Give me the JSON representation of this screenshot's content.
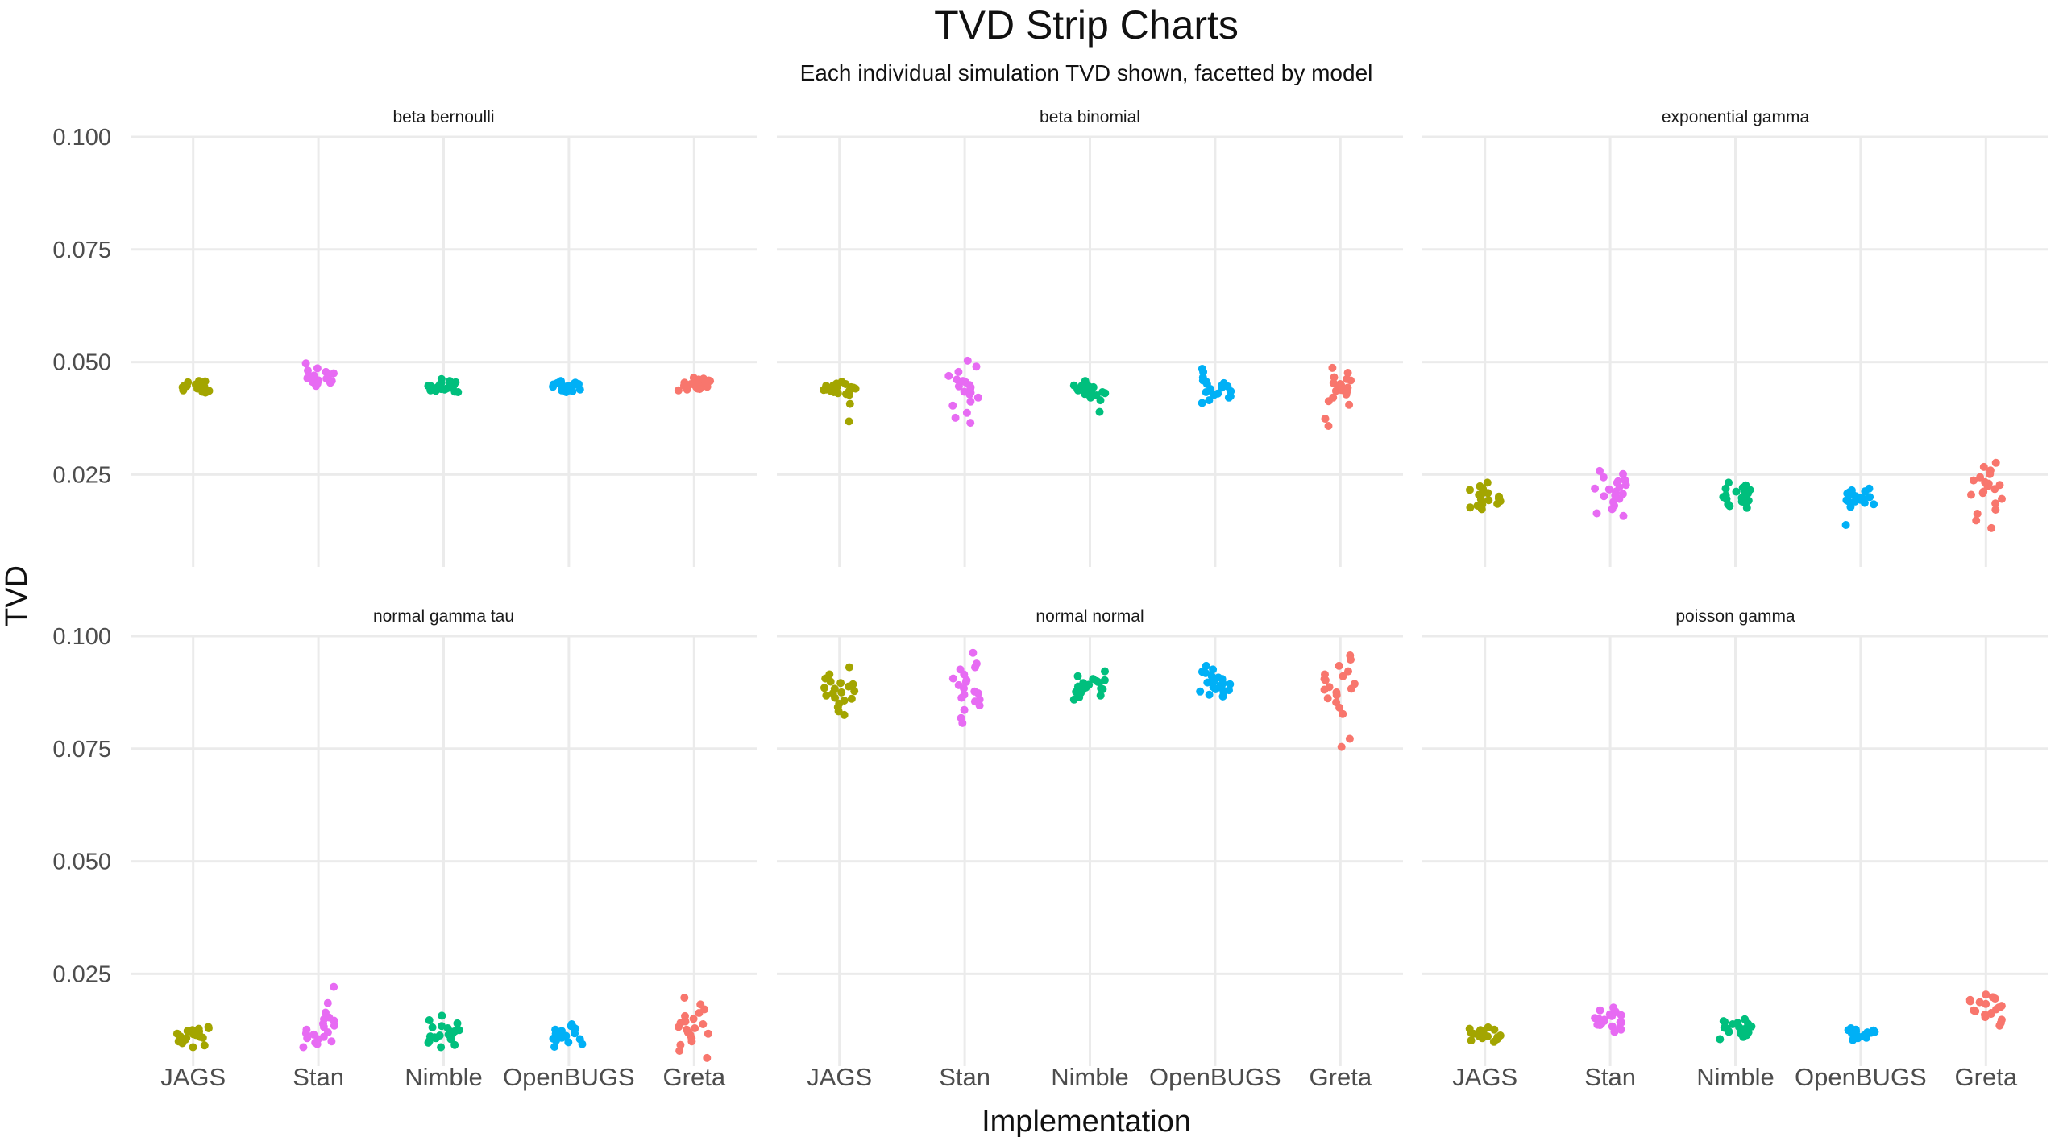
{
  "chart_data": {
    "type": "scatter",
    "subtype": "faceted strip chart (jittered)",
    "title": "TVD Strip Charts",
    "subtitle": "Each individual simulation TVD shown, facetted by model",
    "xlabel": "Implementation",
    "ylabel": "TVD",
    "categories": [
      "JAGS",
      "Stan",
      "Nimble",
      "OpenBUGS",
      "Greta"
    ],
    "colors": {
      "JAGS": "#A3A500",
      "Stan": "#E76BF3",
      "Nimble": "#00BF7D",
      "OpenBUGS": "#00B0F6",
      "Greta": "#F8766D"
    },
    "ylim": [
      0.0045,
      0.1
    ],
    "yticks": [
      0.025,
      0.05,
      0.075,
      0.1
    ],
    "ytick_labels": [
      "0.025",
      "0.050",
      "0.075",
      "0.100"
    ],
    "grid": true,
    "legend": "none",
    "panels": [
      {
        "name": "beta bernoulli",
        "series": [
          {
            "name": "JAGS",
            "values": [
              0.0453,
              0.0447,
              0.0441,
              0.0436,
              0.0458,
              0.0449,
              0.0444,
              0.0432,
              0.0451,
              0.0439,
              0.0446,
              0.0455,
              0.0442,
              0.0437,
              0.045,
              0.0448,
              0.0443,
              0.0434,
              0.0457,
              0.0445
            ]
          },
          {
            "name": "Stan",
            "values": [
              0.0497,
              0.0486,
              0.0478,
              0.047,
              0.0466,
              0.0462,
              0.0458,
              0.0454,
              0.045,
              0.0447,
              0.0472,
              0.0481,
              0.0464,
              0.0456,
              0.0468,
              0.0459,
              0.0475,
              0.0452,
              0.0463,
              0.0469
            ]
          },
          {
            "name": "Nimble",
            "values": [
              0.0462,
              0.0455,
              0.0449,
              0.0444,
              0.0439,
              0.0434,
              0.0452,
              0.0446,
              0.0441,
              0.0437,
              0.0458,
              0.0448,
              0.0443,
              0.0436,
              0.045,
              0.0445,
              0.044,
              0.0433,
              0.0454,
              0.0447
            ]
          },
          {
            "name": "OpenBUGS",
            "values": [
              0.0458,
              0.0453,
              0.0449,
              0.0445,
              0.0441,
              0.0437,
              0.0433,
              0.0456,
              0.0451,
              0.0447,
              0.0443,
              0.0439,
              0.0435,
              0.0454,
              0.045,
              0.0446,
              0.0442,
              0.0438,
              0.0452,
              0.0448
            ]
          },
          {
            "name": "Greta",
            "values": [
              0.0465,
              0.0459,
              0.0454,
              0.0449,
              0.0445,
              0.0441,
              0.0437,
              0.0461,
              0.0456,
              0.0451,
              0.0447,
              0.0443,
              0.0439,
              0.0463,
              0.0458,
              0.0452,
              0.0448,
              0.0444,
              0.044,
              0.0455
            ]
          }
        ]
      },
      {
        "name": "beta binomial",
        "series": [
          {
            "name": "JAGS",
            "values": [
              0.0456,
              0.0451,
              0.0447,
              0.0443,
              0.0439,
              0.0435,
              0.0431,
              0.0427,
              0.0448,
              0.0444,
              0.044,
              0.0436,
              0.0452,
              0.0445,
              0.0438,
              0.0433,
              0.0429,
              0.0407,
              0.0368,
              0.0441
            ]
          },
          {
            "name": "Stan",
            "values": [
              0.0503,
              0.049,
              0.0478,
              0.0469,
              0.0461,
              0.0455,
              0.0449,
              0.0444,
              0.0439,
              0.0434,
              0.0428,
              0.0421,
              0.0412,
              0.0403,
              0.0387,
              0.0376,
              0.0365,
              0.0458,
              0.0446,
              0.0432
            ]
          },
          {
            "name": "Nimble",
            "values": [
              0.0458,
              0.0452,
              0.0447,
              0.0443,
              0.0439,
              0.0435,
              0.0431,
              0.0426,
              0.0421,
              0.0415,
              0.0389,
              0.045,
              0.0445,
              0.0441,
              0.0437,
              0.0433,
              0.0429,
              0.0448,
              0.0444,
              0.044
            ]
          },
          {
            "name": "OpenBUGS",
            "values": [
              0.0485,
              0.0478,
              0.0466,
              0.0459,
              0.0453,
              0.0448,
              0.0443,
              0.0438,
              0.0433,
              0.0427,
              0.0421,
              0.0415,
              0.0409,
              0.0446,
              0.044,
              0.0435,
              0.0456,
              0.0451,
              0.043,
              0.0424
            ]
          },
          {
            "name": "Greta",
            "values": [
              0.0487,
              0.0476,
              0.0466,
              0.0459,
              0.0453,
              0.0448,
              0.0443,
              0.0438,
              0.0433,
              0.0428,
              0.0421,
              0.0413,
              0.0405,
              0.0374,
              0.0358,
              0.0451,
              0.0445,
              0.0436,
              0.0462,
              0.0441
            ]
          }
        ]
      },
      {
        "name": "exponential gamma",
        "series": [
          {
            "name": "JAGS",
            "values": [
              0.0232,
              0.0224,
              0.0218,
              0.0213,
              0.0209,
              0.0205,
              0.0201,
              0.0197,
              0.0193,
              0.0189,
              0.0185,
              0.0181,
              0.0177,
              0.0173,
              0.0207,
              0.0199,
              0.0191,
              0.0216,
              0.0183,
              0.0195
            ]
          },
          {
            "name": "Stan",
            "values": [
              0.0258,
              0.0251,
              0.0244,
              0.0238,
              0.0232,
              0.0227,
              0.0222,
              0.0217,
              0.0212,
              0.0207,
              0.0202,
              0.0196,
              0.0189,
              0.0181,
              0.0173,
              0.0164,
              0.0158,
              0.0235,
              0.0219,
              0.0204
            ]
          },
          {
            "name": "Nimble",
            "values": [
              0.0232,
              0.0226,
              0.0221,
              0.0216,
              0.0212,
              0.0208,
              0.0204,
              0.02,
              0.0196,
              0.0192,
              0.0188,
              0.0184,
              0.018,
              0.0176,
              0.0214,
              0.0198,
              0.019,
              0.0219,
              0.0202,
              0.0186
            ]
          },
          {
            "name": "OpenBUGS",
            "values": [
              0.0219,
              0.0215,
              0.0211,
              0.0208,
              0.0205,
              0.0202,
              0.0199,
              0.0196,
              0.0193,
              0.019,
              0.0187,
              0.0184,
              0.0178,
              0.0138,
              0.0206,
              0.02,
              0.0194,
              0.0213,
              0.0197,
              0.0191
            ]
          },
          {
            "name": "Greta",
            "values": [
              0.0276,
              0.0267,
              0.0259,
              0.0251,
              0.0244,
              0.0237,
              0.023,
              0.0224,
              0.0218,
              0.0212,
              0.0205,
              0.0196,
              0.0186,
              0.0172,
              0.0163,
              0.0148,
              0.0131,
              0.0227,
              0.0209,
              0.0233
            ]
          }
        ]
      },
      {
        "name": "normal gamma tau",
        "series": [
          {
            "name": "JAGS",
            "values": [
              0.0132,
              0.0128,
              0.0125,
              0.0122,
              0.0119,
              0.0116,
              0.0113,
              0.011,
              0.0107,
              0.0104,
              0.01,
              0.0096,
              0.0091,
              0.0087,
              0.0123,
              0.0117,
              0.0111,
              0.0129,
              0.0108,
              0.0114
            ]
          },
          {
            "name": "Stan",
            "values": [
              0.0221,
              0.0185,
              0.0164,
              0.0153,
              0.0146,
              0.0139,
              0.0132,
              0.0126,
              0.012,
              0.0115,
              0.011,
              0.0105,
              0.01,
              0.0094,
              0.0087,
              0.0149,
              0.0118,
              0.0107,
              0.0135,
              0.0097
            ]
          },
          {
            "name": "Nimble",
            "values": [
              0.0157,
              0.0147,
              0.014,
              0.0134,
              0.0129,
              0.0125,
              0.0121,
              0.0117,
              0.0113,
              0.0109,
              0.0105,
              0.0101,
              0.0097,
              0.0092,
              0.0087,
              0.0123,
              0.0115,
              0.0107,
              0.0131,
              0.0111
            ]
          },
          {
            "name": "OpenBUGS",
            "values": [
              0.0138,
              0.0134,
              0.013,
              0.0126,
              0.0123,
              0.012,
              0.0117,
              0.0114,
              0.0111,
              0.0108,
              0.0105,
              0.0102,
              0.0098,
              0.0094,
              0.0088,
              0.0128,
              0.0118,
              0.0112,
              0.0106,
              0.0121
            ]
          },
          {
            "name": "Greta",
            "values": [
              0.0197,
              0.0182,
              0.0171,
              0.0163,
              0.0156,
              0.015,
              0.0144,
              0.0138,
              0.0132,
              0.0126,
              0.012,
              0.0114,
              0.0107,
              0.01,
              0.0092,
              0.0079,
              0.0063,
              0.0141,
              0.0129,
              0.0117
            ]
          }
        ]
      },
      {
        "name": "normal normal",
        "series": [
          {
            "name": "JAGS",
            "values": [
              0.0931,
              0.0915,
              0.0906,
              0.0899,
              0.0893,
              0.0888,
              0.0883,
              0.0878,
              0.0873,
              0.0868,
              0.0863,
              0.0857,
              0.085,
              0.0842,
              0.0833,
              0.0825,
              0.0896,
              0.0885,
              0.0875,
              0.0861
            ]
          },
          {
            "name": "Stan",
            "values": [
              0.0963,
              0.0939,
              0.0926,
              0.0915,
              0.0906,
              0.0898,
              0.0891,
              0.0884,
              0.0877,
              0.087,
              0.0863,
              0.0855,
              0.0846,
              0.0836,
              0.0818,
              0.0807,
              0.0931,
              0.0902,
              0.0873,
              0.0859
            ]
          },
          {
            "name": "Nimble",
            "values": [
              0.0922,
              0.0911,
              0.0905,
              0.09,
              0.0896,
              0.0892,
              0.0888,
              0.0884,
              0.088,
              0.0876,
              0.0872,
              0.0868,
              0.0864,
              0.0859,
              0.0898,
              0.089,
              0.0882,
              0.0874,
              0.0902,
              0.0886
            ]
          },
          {
            "name": "OpenBUGS",
            "values": [
              0.0934,
              0.0926,
              0.0918,
              0.0911,
              0.0905,
              0.09,
              0.0895,
              0.089,
              0.0885,
              0.088,
              0.0875,
              0.087,
              0.0866,
              0.0921,
              0.0908,
              0.0897,
              0.0887,
              0.0877,
              0.0893,
              0.0882
            ]
          },
          {
            "name": "Greta",
            "values": [
              0.0957,
              0.0948,
              0.0934,
              0.0922,
              0.0911,
              0.0902,
              0.0894,
              0.0887,
              0.0881,
              0.0875,
              0.0869,
              0.0862,
              0.0853,
              0.0841,
              0.0827,
              0.0772,
              0.0754,
              0.0905,
              0.0883,
              0.0915
            ]
          }
        ]
      },
      {
        "name": "poisson gamma",
        "series": [
          {
            "name": "JAGS",
            "values": [
              0.0131,
              0.0128,
              0.0125,
              0.0122,
              0.0119,
              0.0117,
              0.0115,
              0.0113,
              0.0111,
              0.0109,
              0.0107,
              0.0105,
              0.0102,
              0.0099,
              0.0121,
              0.0116,
              0.0112,
              0.0126,
              0.0108,
              0.0118
            ]
          },
          {
            "name": "Stan",
            "values": [
              0.0175,
              0.0169,
              0.0164,
              0.016,
              0.0156,
              0.0152,
              0.0148,
              0.0145,
              0.0142,
              0.0139,
              0.0136,
              0.0133,
              0.013,
              0.0126,
              0.0121,
              0.0158,
              0.015,
              0.0143,
              0.0137,
              0.0166
            ]
          },
          {
            "name": "Nimble",
            "values": [
              0.0149,
              0.0145,
              0.0141,
              0.0138,
              0.0135,
              0.0132,
              0.0129,
              0.0126,
              0.0123,
              0.012,
              0.0117,
              0.0114,
              0.011,
              0.0105,
              0.0139,
              0.0133,
              0.0127,
              0.0121,
              0.0143,
              0.013
            ]
          },
          {
            "name": "OpenBUGS",
            "values": [
              0.0129,
              0.0126,
              0.0124,
              0.0122,
              0.012,
              0.0118,
              0.0116,
              0.0114,
              0.0112,
              0.0111,
              0.0109,
              0.0107,
              0.0105,
              0.0103,
              0.0121,
              0.0117,
              0.0113,
              0.0125,
              0.0108,
              0.0119
            ]
          },
          {
            "name": "Greta",
            "values": [
              0.0204,
              0.0198,
              0.0192,
              0.0187,
              0.0183,
              0.0179,
              0.0175,
              0.0171,
              0.0167,
              0.0163,
              0.0159,
              0.0154,
              0.0148,
              0.0141,
              0.0135,
              0.0189,
              0.0177,
              0.0169,
              0.0161,
              0.0195
            ]
          }
        ]
      }
    ]
  }
}
